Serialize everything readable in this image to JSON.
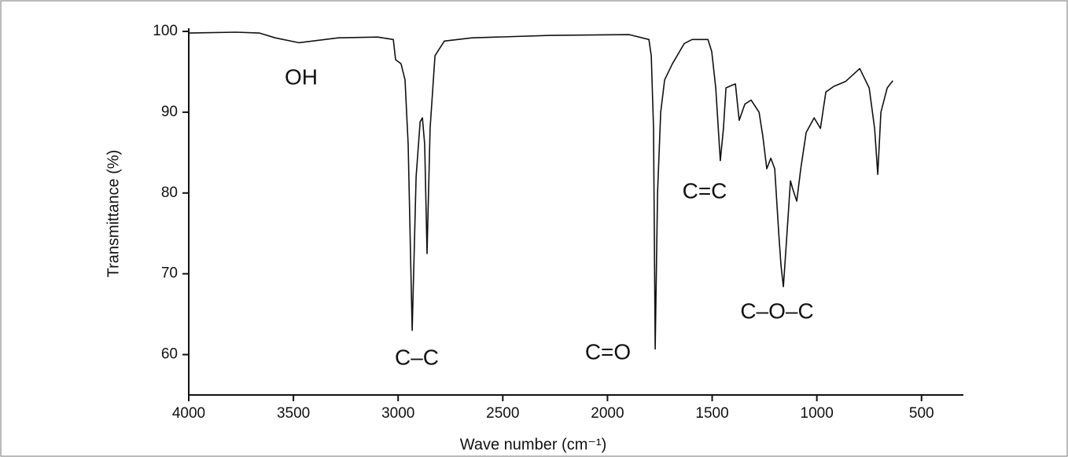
{
  "chart_data": {
    "type": "line",
    "x_label": "Wave number (cm⁻¹)",
    "y_label": "Transmittance (%)",
    "annotations": [
      "OH",
      "C–C",
      "C=O",
      "C=C",
      "C–O–C"
    ],
    "xlim": [
      4000,
      300
    ],
    "ylim": [
      55,
      100
    ],
    "xticks": [
      4000,
      3500,
      3000,
      2500,
      2000,
      1500,
      1000,
      500
    ],
    "yticks": [
      60,
      70,
      80,
      90,
      100
    ],
    "series": [
      {
        "color": "#111111",
        "x": [
          4000,
          3775,
          3662,
          3587,
          3474,
          3286,
          3098,
          3023,
          3012,
          2986,
          2967,
          2952,
          2933,
          2914,
          2895,
          2884,
          2873,
          2862,
          2847,
          2824,
          2779,
          2647,
          2272,
          1896,
          1802,
          1791,
          1780,
          1772,
          1761,
          1746,
          1727,
          1690,
          1633,
          1596,
          1520,
          1502,
          1483,
          1461,
          1446,
          1434,
          1408,
          1389,
          1371,
          1344,
          1314,
          1276,
          1258,
          1239,
          1220,
          1201,
          1182,
          1171,
          1160,
          1145,
          1126,
          1115,
          1096,
          1077,
          1051,
          1013,
          983,
          957,
          919,
          863,
          795,
          750,
          724,
          709,
          694,
          664,
          637
        ],
        "values": [
          99.8,
          99.9,
          99.8,
          99.2,
          98.6,
          99.2,
          99.3,
          99,
          96.5,
          96,
          94,
          86,
          63,
          82,
          88.8,
          89.3,
          86,
          72.5,
          88,
          97,
          98.8,
          99.2,
          99.5,
          99.6,
          99,
          97,
          88,
          60.7,
          80,
          90,
          94,
          96,
          98.5,
          99,
          99,
          97.5,
          93,
          84,
          88,
          93,
          93.3,
          93.5,
          89,
          91,
          91.5,
          90,
          87,
          83,
          84.3,
          83,
          75,
          71,
          68.4,
          74,
          81.5,
          80.5,
          79,
          83,
          87.5,
          89.3,
          88,
          92.5,
          93.2,
          93.8,
          95.4,
          93,
          88,
          82.3,
          90,
          93,
          93.9
        ]
      }
    ]
  }
}
